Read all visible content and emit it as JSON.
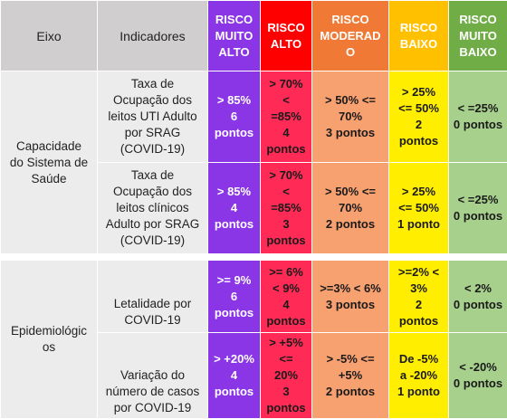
{
  "header": {
    "eixo": "Eixo",
    "indicadores": "Indicadores",
    "muito_alto": [
      "RISCO",
      "MUITO",
      "ALTO"
    ],
    "alto": [
      "RISCO",
      "ALTO"
    ],
    "moderado": [
      "RISCO",
      "MODERAD",
      "O"
    ],
    "baixo": [
      "RISCO",
      "BAIXO"
    ],
    "muito_baixo": [
      "RISCO",
      "MUITO",
      "BAIXO"
    ]
  },
  "colors": {
    "muito_alto": "#8b36e6",
    "alto": "#ff0000",
    "moderado": "#f07a35",
    "baixo": "#ffc000",
    "muito_baixo": "#70ad47"
  },
  "groups": [
    {
      "eixo": [
        "Capacidade",
        "do Sistema de",
        "Saúde"
      ],
      "rows": [
        {
          "indicador": [
            "Taxa de",
            "Ocupação dos",
            "leitos UTI Adulto",
            "por SRAG",
            "(COVID-19)"
          ],
          "muito_alto": [
            "> 85%",
            "6",
            "pontos"
          ],
          "alto": [
            "> 70%",
            "<",
            "=85%",
            "4",
            "pontos"
          ],
          "moderado": [
            "> 50% <=",
            "70%",
            "3 pontos"
          ],
          "baixo": [
            "> 25%",
            "<= 50%",
            "2",
            "pontos"
          ],
          "muito_baixo": [
            "< =25%",
            "0 pontos"
          ]
        },
        {
          "indicador": [
            "Taxa de",
            "Ocupação dos",
            "leitos clínicos",
            "Adulto por SRAG",
            "(COVID-19)"
          ],
          "muito_alto": [
            "> 85%",
            "4",
            "pontos"
          ],
          "alto": [
            "> 70%",
            "<",
            "=85%",
            "3",
            "pontos"
          ],
          "moderado": [
            "> 50% <=",
            "70%",
            "2 pontos"
          ],
          "baixo": [
            "> 25%",
            "<= 50%",
            "1 ponto"
          ],
          "muito_baixo": [
            "< =25%",
            "0 pontos"
          ]
        }
      ]
    },
    {
      "eixo": [
        "Epidemiológic",
        "os"
      ],
      "rows": [
        {
          "indicador": [
            "Letalidade por",
            "COVID-19"
          ],
          "muito_alto": [
            ">= 9%",
            "6",
            "pontos"
          ],
          "alto": [
            ">= 6%",
            "< 9%",
            "4",
            "pontos"
          ],
          "moderado": [
            ">=3% < 6%",
            "3 pontos"
          ],
          "baixo": [
            ">=2% <",
            "3%",
            "2",
            "pontos"
          ],
          "muito_baixo": [
            "< 2%",
            "0 pontos"
          ]
        },
        {
          "indicador": [
            "Variação do",
            "número de casos",
            "por COVID-19"
          ],
          "muito_alto": [
            "> +20%",
            "4",
            "pontos"
          ],
          "alto": [
            "> +5%",
            "<=",
            "20%",
            "3",
            "pontos"
          ],
          "moderado": [
            "> -5% <=",
            "+5%",
            "2 pontos"
          ],
          "baixo": [
            "De -5%",
            "a -20%",
            "1 ponto"
          ],
          "muito_baixo": [
            "< -20%",
            "0 pontos"
          ]
        }
      ]
    }
  ]
}
